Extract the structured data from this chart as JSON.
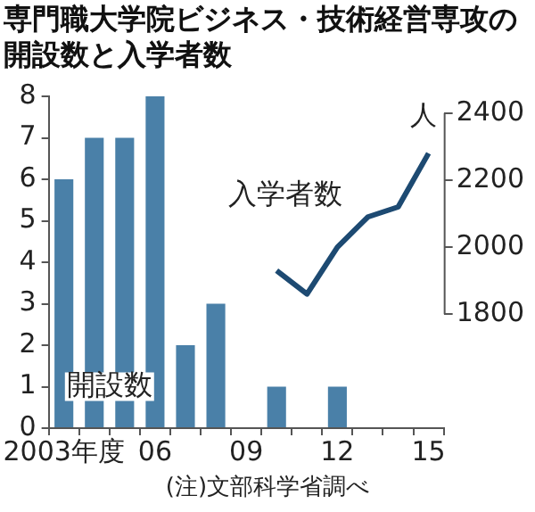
{
  "chart_data": {
    "type": "bar",
    "title": "専門職大学院ビジネス・技術経営専攻の開設数と入学者数",
    "categories": [
      "2003年度",
      null,
      null,
      "06",
      null,
      null,
      "09",
      null,
      null,
      "12",
      null,
      null,
      "15"
    ],
    "series": [
      {
        "name": "開設数",
        "color": "#4a80a8",
        "values": [
          6,
          7,
          7,
          8,
          2,
          3,
          0,
          1,
          0,
          1,
          0,
          0,
          0
        ]
      },
      {
        "name": "入学者数",
        "type": "line",
        "axis": "y2",
        "color": "#1d4a72",
        "values": [
          null,
          null,
          null,
          null,
          null,
          null,
          null,
          1930,
          1860,
          2000,
          2090,
          2120,
          2280
        ]
      }
    ],
    "ylim": [
      0,
      8
    ],
    "yticks": [
      0,
      1,
      2,
      3,
      4,
      5,
      6,
      7,
      8
    ],
    "y2label": "人",
    "y2lim": [
      1460,
      2450
    ],
    "y2ticks": [
      1800,
      2000,
      2200,
      2400
    ],
    "annotations": [
      "(注)文部科学省調べ"
    ]
  }
}
